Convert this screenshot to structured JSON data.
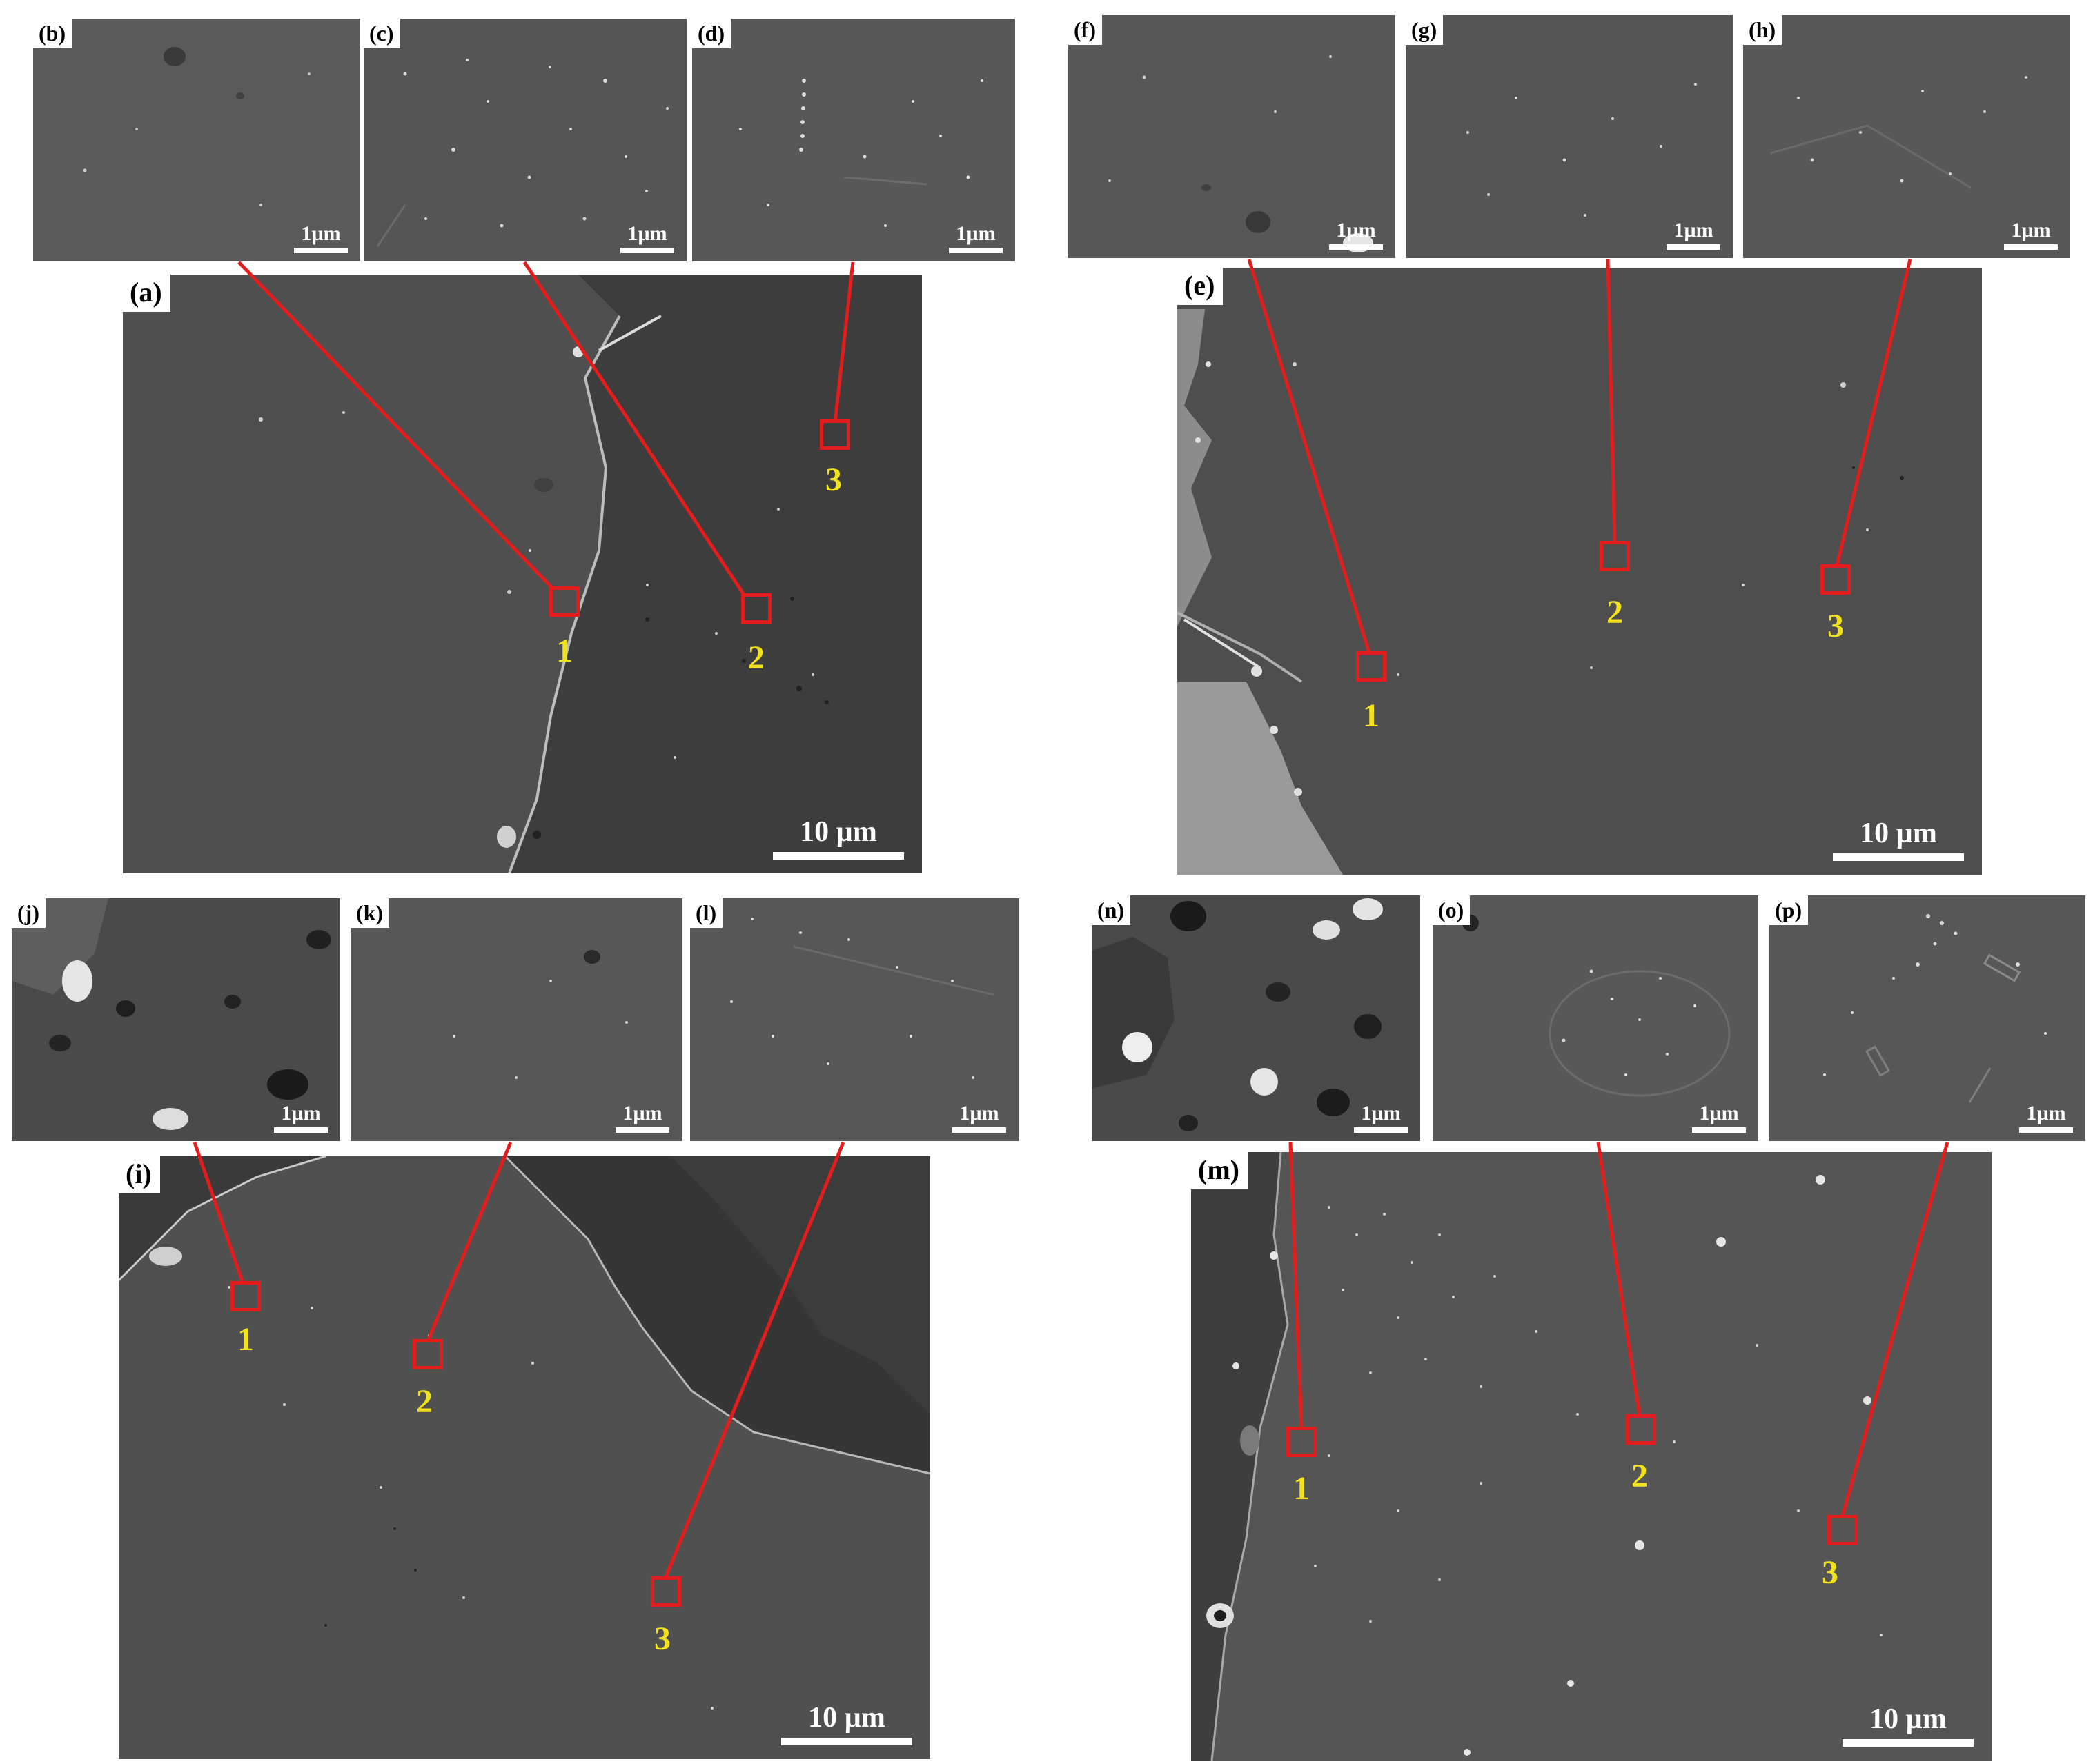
{
  "colors": {
    "leader_line": "#e31c1c",
    "region_marker": "#e31c1c",
    "region_label": "#f2e21c",
    "scale_bar": "#ffffff",
    "background": "#ffffff"
  },
  "groups": [
    {
      "id": "top-left",
      "main": {
        "label": "(a)",
        "scale": "10 µm"
      },
      "insets": [
        {
          "label": "(b)",
          "scale": "1µm"
        },
        {
          "label": "(c)",
          "scale": "1µm"
        },
        {
          "label": "(d)",
          "scale": "1µm"
        }
      ],
      "regions": [
        "1",
        "2",
        "3"
      ]
    },
    {
      "id": "top-right",
      "main": {
        "label": "(e)",
        "scale": "10 µm"
      },
      "insets": [
        {
          "label": "(f)",
          "scale": "1µm"
        },
        {
          "label": "(g)",
          "scale": "1µm"
        },
        {
          "label": "(h)",
          "scale": "1µm"
        }
      ],
      "regions": [
        "1",
        "2",
        "3"
      ]
    },
    {
      "id": "bottom-left",
      "main": {
        "label": "(i)",
        "scale": "10 µm"
      },
      "insets": [
        {
          "label": "(j)",
          "scale": "1µm"
        },
        {
          "label": "(k)",
          "scale": "1µm"
        },
        {
          "label": "(l)",
          "scale": "1µm"
        }
      ],
      "regions": [
        "1",
        "2",
        "3"
      ]
    },
    {
      "id": "bottom-right",
      "main": {
        "label": "(m)",
        "scale": "10 µm"
      },
      "insets": [
        {
          "label": "(n)",
          "scale": "1µm"
        },
        {
          "label": "(o)",
          "scale": "1µm"
        },
        {
          "label": "(p)",
          "scale": "1µm"
        }
      ],
      "regions": [
        "1",
        "2",
        "3"
      ]
    }
  ]
}
